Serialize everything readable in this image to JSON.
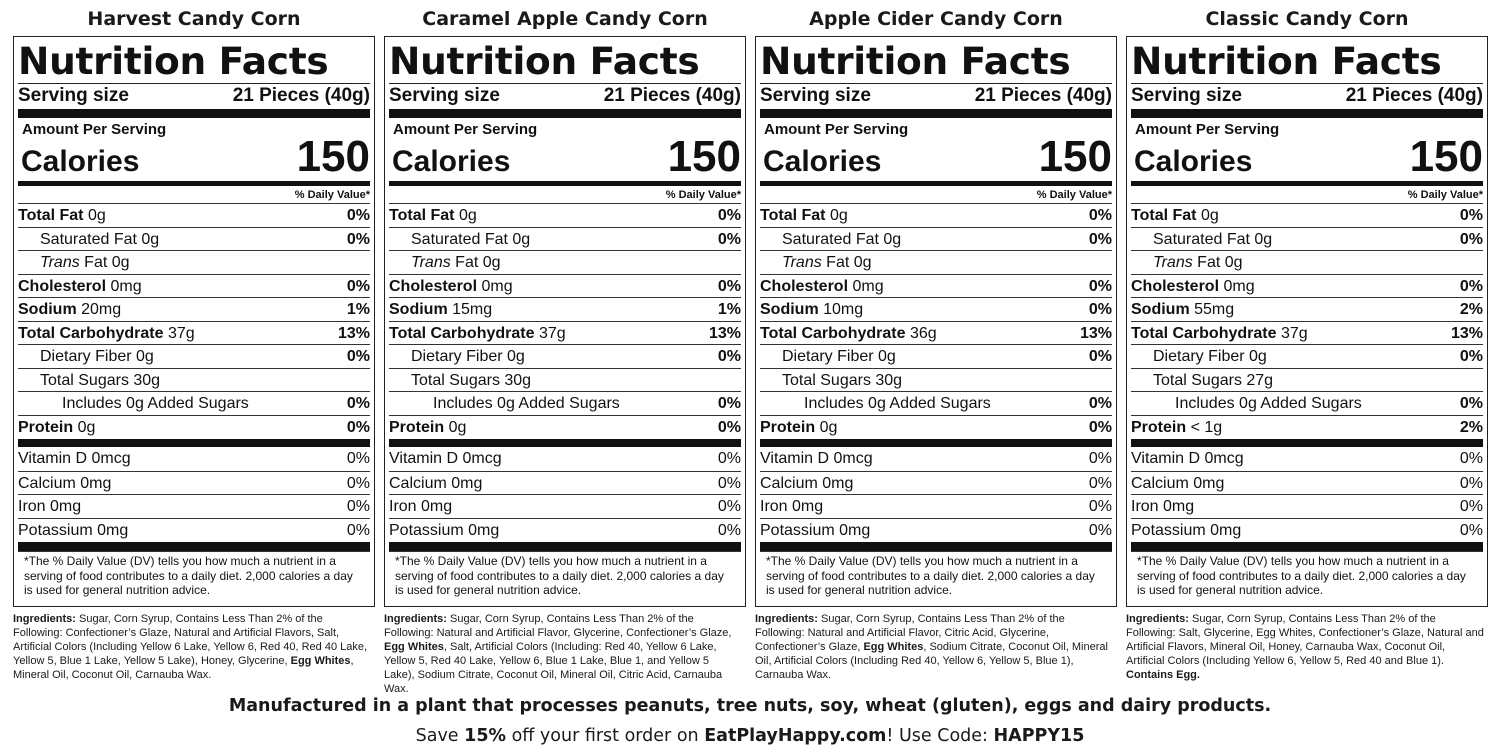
{
  "labels": [
    {
      "product": "Harvest Candy Corn",
      "nf_title": "Nutrition Facts",
      "serving_label": "Serving size",
      "serving_value": "21 Pieces (40g)",
      "amount_per_serving": "Amount Per Serving",
      "calories_label": "Calories",
      "calories": "150",
      "dv_header": "% Daily Value*",
      "total_fat_label": "Total Fat",
      "total_fat": "0g",
      "total_fat_dv": "0%",
      "sat_fat_label": "Saturated Fat 0g",
      "sat_fat_dv": "0%",
      "trans_label": "Trans",
      "trans_fat": "Fat 0g",
      "cholesterol_label": "Cholesterol",
      "cholesterol": "0mg",
      "cholesterol_dv": "0%",
      "sodium_label": "Sodium",
      "sodium": "20mg",
      "sodium_dv": "1%",
      "carb_label": "Total Carbohydrate",
      "carb": "37g",
      "carb_dv": "13%",
      "fiber_label": "Dietary Fiber 0g",
      "fiber_dv": "0%",
      "sugars_label": "Total Sugars 30g",
      "added_sugars_label": "Includes 0g Added Sugars",
      "added_sugars_dv": "0%",
      "protein_label": "Protein",
      "protein": "0g",
      "protein_dv": "0%",
      "vitd_label": "Vitamin D 0mcg",
      "vitd_dv": "0%",
      "calcium_label": "Calcium 0mg",
      "calcium_dv": "0%",
      "iron_label": "Iron 0mg",
      "iron_dv": "0%",
      "potassium_label": "Potassium 0mg",
      "potassium_dv": "0%",
      "footnote": "*The % Daily Value (DV) tells you how much a nutrient in a serving of food contributes to a daily diet. 2,000 calories a day is used for general nutrition advice.",
      "ingredients_label": "Ingredients:",
      "ingredients_a": " Sugar, Corn Syrup, Contains Less Than 2% of the Following: Confectioner’s Glaze, Natural and Artificial Flavors, Salt, Artificial Colors (Including Yellow 6 Lake, Yellow 6, Red 40, Red 40 Lake, Yellow 5, Blue 1 Lake, Yellow 5 Lake), Honey, Glycerine, ",
      "ingredients_b": "Egg Whites",
      "ingredients_c": ", Mineral Oil, Coconut Oil, Carnauba Wax."
    },
    {
      "product": "Caramel Apple Candy Corn",
      "nf_title": "Nutrition Facts",
      "serving_label": "Serving size",
      "serving_value": "21 Pieces (40g)",
      "amount_per_serving": "Amount Per Serving",
      "calories_label": "Calories",
      "calories": "150",
      "dv_header": "% Daily Value*",
      "total_fat_label": "Total Fat",
      "total_fat": "0g",
      "total_fat_dv": "0%",
      "sat_fat_label": "Saturated Fat 0g",
      "sat_fat_dv": "0%",
      "trans_label": "Trans",
      "trans_fat": "Fat 0g",
      "cholesterol_label": "Cholesterol",
      "cholesterol": "0mg",
      "cholesterol_dv": "0%",
      "sodium_label": "Sodium",
      "sodium": "15mg",
      "sodium_dv": "1%",
      "carb_label": "Total Carbohydrate",
      "carb": "37g",
      "carb_dv": "13%",
      "fiber_label": "Dietary Fiber 0g",
      "fiber_dv": "0%",
      "sugars_label": "Total Sugars 30g",
      "added_sugars_label": "Includes 0g Added Sugars",
      "added_sugars_dv": "0%",
      "protein_label": "Protein",
      "protein": "0g",
      "protein_dv": "0%",
      "vitd_label": "Vitamin D 0mcg",
      "vitd_dv": "0%",
      "calcium_label": "Calcium 0mg",
      "calcium_dv": "0%",
      "iron_label": "Iron 0mg",
      "iron_dv": "0%",
      "potassium_label": "Potassium 0mg",
      "potassium_dv": "0%",
      "footnote": "*The % Daily Value (DV) tells you how much a nutrient in a serving of food contributes to a daily diet. 2,000 calories a day is used for general nutrition advice.",
      "ingredients_label": "Ingredients:",
      "ingredients_a": " Sugar, Corn Syrup, Contains Less Than 2% of the Following: Natural and Artificial Flavor, Glycerine, Confectioner’s Glaze, ",
      "ingredients_b": "Egg Whites",
      "ingredients_c": ", Salt, Artificial Colors (Including: Red 40, Yellow 6 Lake, Yellow 5, Red 40 Lake, Yellow 6, Blue 1 Lake, Blue 1, and Yellow 5 Lake), Sodium Citrate, Coconut Oil, Mineral Oil, Citric Acid, Carnauba Wax."
    },
    {
      "product": "Apple Cider Candy Corn",
      "nf_title": "Nutrition Facts",
      "serving_label": "Serving size",
      "serving_value": "21 Pieces (40g)",
      "amount_per_serving": "Amount Per Serving",
      "calories_label": "Calories",
      "calories": "150",
      "dv_header": "% Daily Value*",
      "total_fat_label": "Total Fat",
      "total_fat": "0g",
      "total_fat_dv": "0%",
      "sat_fat_label": "Saturated Fat 0g",
      "sat_fat_dv": "0%",
      "trans_label": "Trans",
      "trans_fat": "Fat 0g",
      "cholesterol_label": "Cholesterol",
      "cholesterol": "0mg",
      "cholesterol_dv": "0%",
      "sodium_label": "Sodium",
      "sodium": "10mg",
      "sodium_dv": "0%",
      "carb_label": "Total Carbohydrate",
      "carb": "36g",
      "carb_dv": "13%",
      "fiber_label": "Dietary Fiber 0g",
      "fiber_dv": "0%",
      "sugars_label": "Total Sugars 30g",
      "added_sugars_label": "Includes 0g Added Sugars",
      "added_sugars_dv": "0%",
      "protein_label": "Protein",
      "protein": "0g",
      "protein_dv": "0%",
      "vitd_label": "Vitamin D 0mcg",
      "vitd_dv": "0%",
      "calcium_label": "Calcium 0mg",
      "calcium_dv": "0%",
      "iron_label": "Iron 0mg",
      "iron_dv": "0%",
      "potassium_label": "Potassium 0mg",
      "potassium_dv": "0%",
      "footnote": "*The % Daily Value (DV) tells you how much a nutrient in a serving of food contributes to a daily diet. 2,000 calories a day is used for general nutrition advice.",
      "ingredients_label": "Ingredients:",
      "ingredients_a": " Sugar, Corn Syrup, Contains Less Than 2% of the Following: Natural and Artificial Flavor, Citric Acid, Glycerine, Confectioner’s Glaze, ",
      "ingredients_b": "Egg Whites",
      "ingredients_c": ", Sodium Citrate, Coconut Oil, Mineral Oil, Artificial Colors (Including Red 40, Yellow 6, Yellow 5, Blue 1), Carnauba Wax."
    },
    {
      "product": "Classic Candy Corn",
      "nf_title": "Nutrition Facts",
      "serving_label": "Serving size",
      "serving_value": "21 Pieces (40g)",
      "amount_per_serving": "Amount Per Serving",
      "calories_label": "Calories",
      "calories": "150",
      "dv_header": "% Daily Value*",
      "total_fat_label": "Total Fat",
      "total_fat": "0g",
      "total_fat_dv": "0%",
      "sat_fat_label": "Saturated Fat 0g",
      "sat_fat_dv": "0%",
      "trans_label": "Trans",
      "trans_fat": "Fat 0g",
      "cholesterol_label": "Cholesterol",
      "cholesterol": "0mg",
      "cholesterol_dv": "0%",
      "sodium_label": "Sodium",
      "sodium": "55mg",
      "sodium_dv": "2%",
      "carb_label": "Total Carbohydrate",
      "carb": "37g",
      "carb_dv": "13%",
      "fiber_label": "Dietary Fiber 0g",
      "fiber_dv": "0%",
      "sugars_label": "Total Sugars 27g",
      "added_sugars_label": "Includes 0g Added Sugars",
      "added_sugars_dv": "0%",
      "protein_label": "Protein",
      "protein": "< 1g",
      "protein_dv": "2%",
      "vitd_label": "Vitamin D 0mcg",
      "vitd_dv": "0%",
      "calcium_label": "Calcium 0mg",
      "calcium_dv": "0%",
      "iron_label": "Iron 0mg",
      "iron_dv": "0%",
      "potassium_label": "Potassium 0mg",
      "potassium_dv": "0%",
      "footnote": "*The % Daily Value (DV) tells you how much a nutrient in a serving of food contributes to a daily diet. 2,000 calories a day is used for general nutrition advice.",
      "ingredients_label": "Ingredients:",
      "ingredients_a": " Sugar, Corn Syrup, Contains Less Than 2% of the Following: Salt, Glycerine, Egg Whites, Confectioner’s Glaze, Natural and Artificial Flavors, Mineral Oil, Honey, Carnauba Wax, Coconut Oil, Artificial Colors (Including Yellow 6, Yellow 5, Red 40 and Blue 1). ",
      "ingredients_b": "Contains Egg.",
      "ingredients_c": ""
    }
  ],
  "footer": {
    "allergen_notice": "Manufactured in a plant that processes peanuts, tree nuts, soy, wheat (gluten), eggs and dairy products.",
    "promo_a": "Save ",
    "promo_b": "15%",
    "promo_c": " off your first order on ",
    "promo_d": "EatPlayHappy.com",
    "promo_e": "! Use Code: ",
    "promo_f": "HAPPY15"
  }
}
